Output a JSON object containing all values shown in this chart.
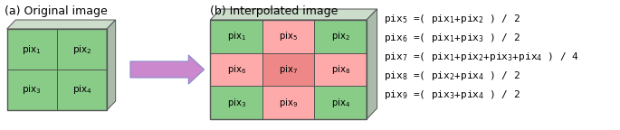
{
  "title_a": "(a) Original image",
  "title_b": "(b) Interpolated image",
  "equations": [
    "pix$_5$ =( pix$_1$+pix$_2$ ) / 2",
    "pix$_6$ =( pix$_1$+pix$_3$ ) / 2",
    "pix$_7$ =( pix$_1$+pix$_2$+pix$_3$+pix$_4$ ) / 4",
    "pix$_8$ =( pix$_2$+pix$_4$ ) / 2",
    "pix$_9$ =( pix$_3$+pix$_4$ ) / 2"
  ],
  "color_green_dark": "#2d8a2d",
  "color_green_light": "#90ee90",
  "color_red_light": "#ffaaaa",
  "color_red_medium": "#ee8888",
  "color_grid": "#555555",
  "color_top": "#ccddcc",
  "color_arrow_fill": "#cc88cc",
  "color_arrow_edge": "#8888cc",
  "bg_color": "#ffffff",
  "font_size_title": 9,
  "font_size_eq": 8,
  "font_size_cell": 7.5
}
